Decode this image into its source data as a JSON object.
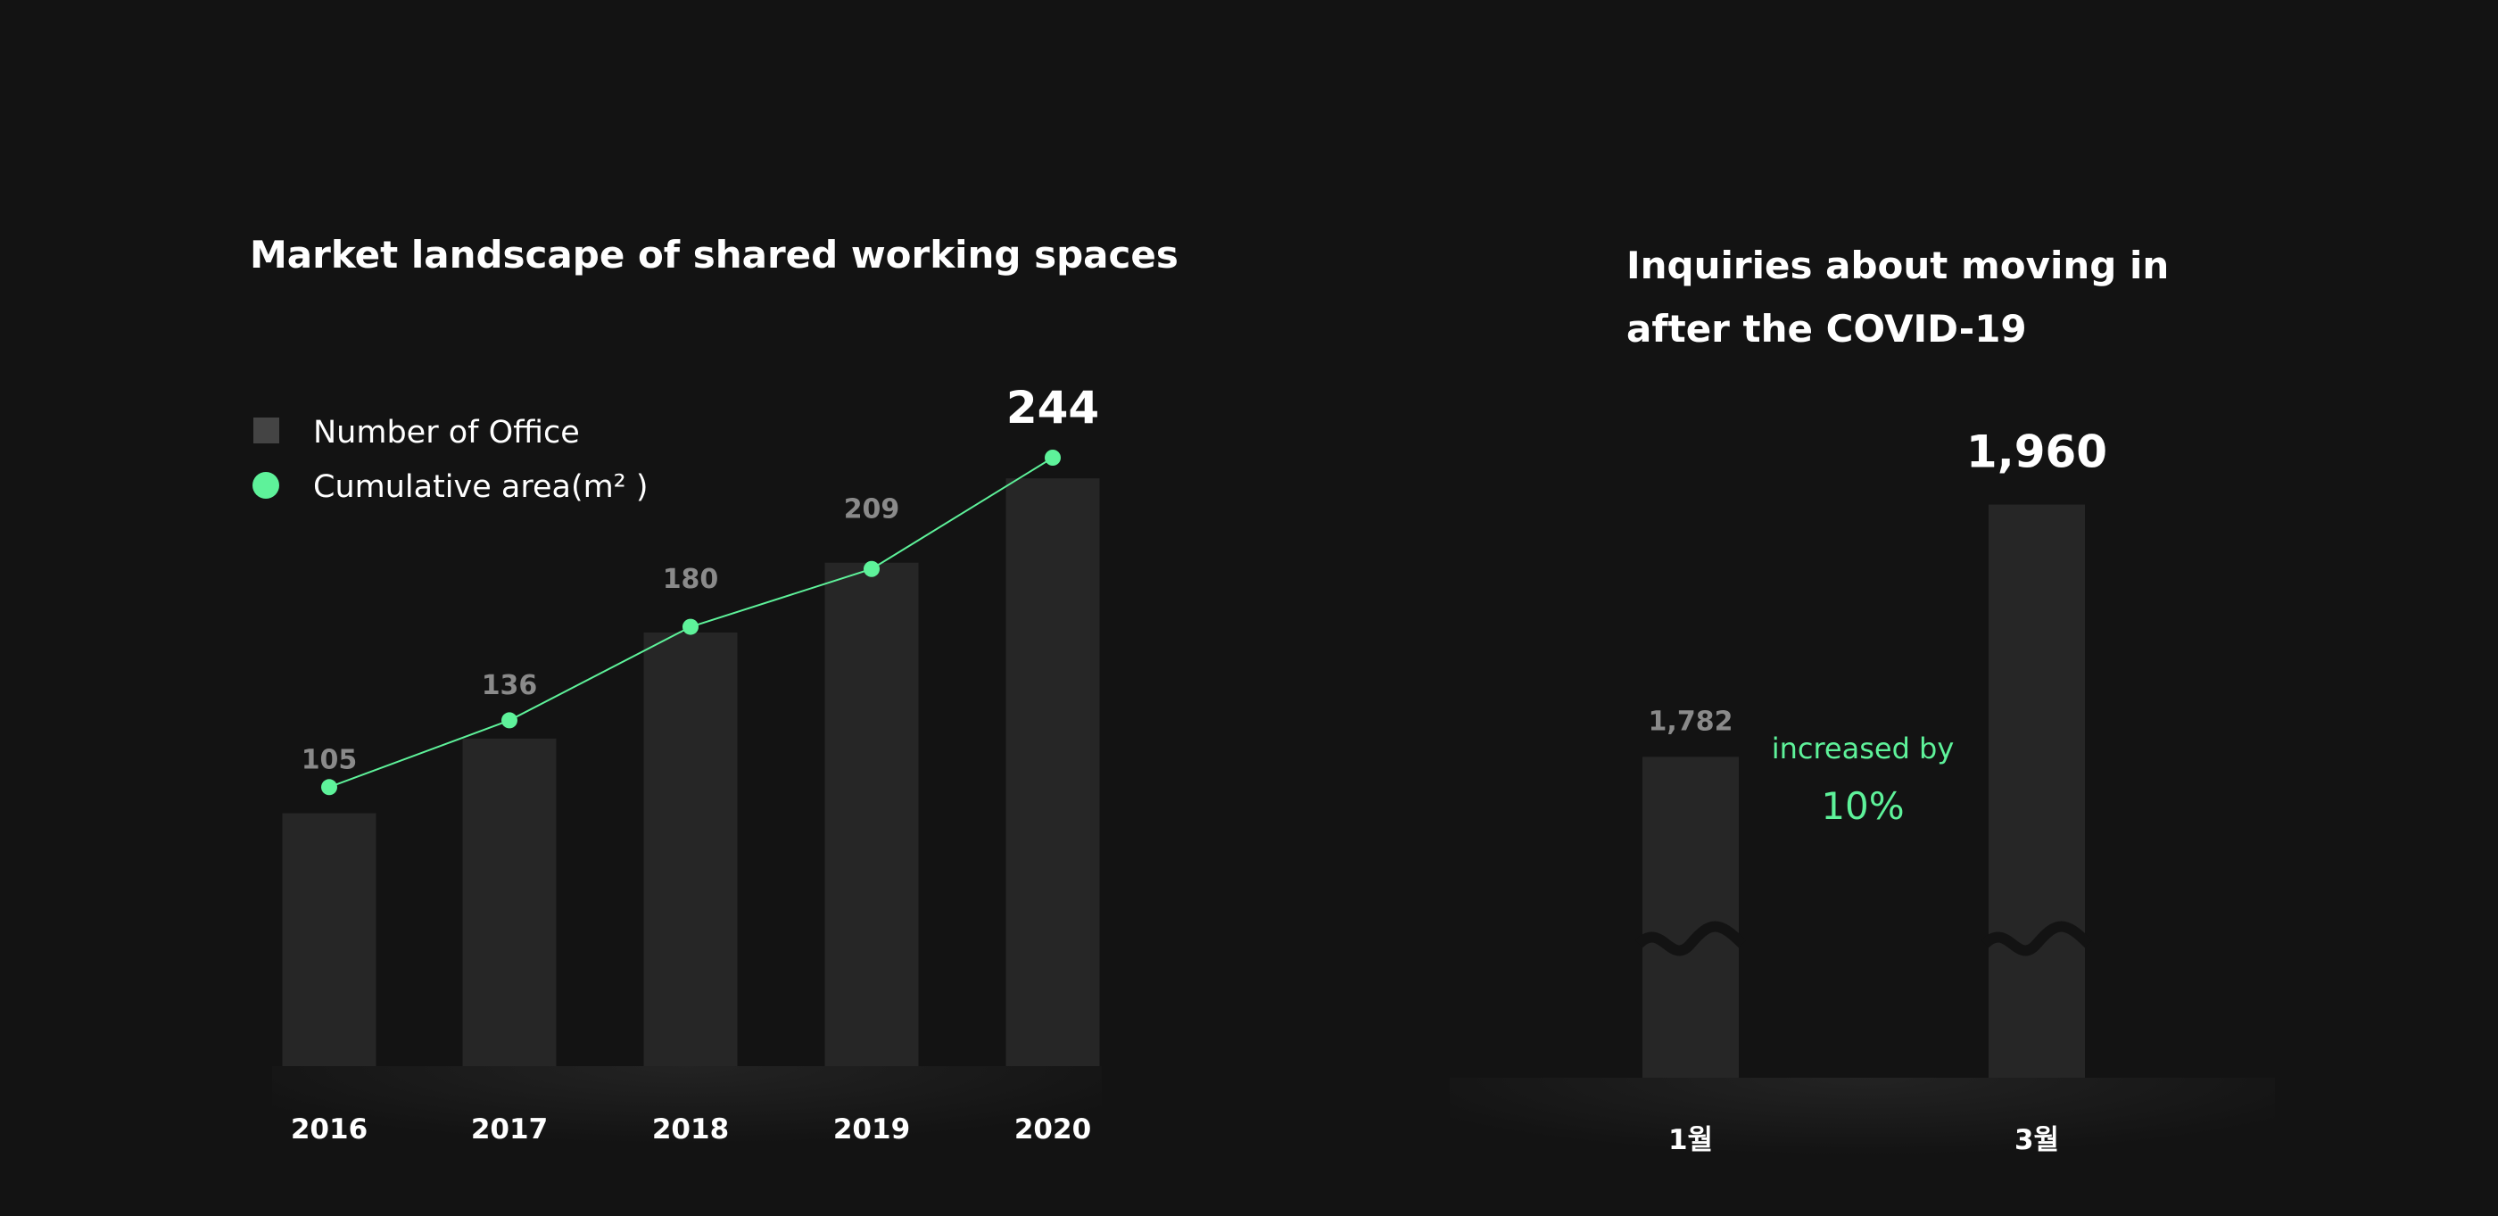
{
  "colors": {
    "background": "#131313",
    "bar": "#262626",
    "legend_square": "#444444",
    "accent": "#5ef29a",
    "label_muted": "#8a8a8a",
    "label_strong": "#ffffff",
    "axis_base": "#1c1c1c"
  },
  "chart_data": [
    {
      "type": "bar",
      "title": "Market landscape of shared working spaces",
      "categories": [
        "2016",
        "2017",
        "2018",
        "2019",
        "2020"
      ],
      "series": [
        {
          "name": "Number of Office",
          "type": "bar",
          "values": [
            105,
            136,
            180,
            209,
            244
          ],
          "value_labels": [
            "105",
            "136",
            "180",
            "209",
            "244"
          ]
        },
        {
          "name": "Cumulative area(m² )",
          "type": "line",
          "marker": "circle",
          "values": [
            null,
            null,
            null,
            null,
            null
          ]
        }
      ],
      "highlighted_category": "2020",
      "legend": {
        "position": "top-left",
        "items": [
          {
            "label": "Number of Office",
            "symbol": "square"
          },
          {
            "label": "Cumulative area(m² )",
            "symbol": "circle"
          }
        ]
      },
      "ylim": [
        0,
        260
      ],
      "grid": false,
      "line_profile": [
        0.26,
        0.41,
        0.62,
        0.75,
        1.0
      ]
    },
    {
      "type": "bar",
      "title": "Inquiries about moving in after the COVID-19",
      "categories": [
        "1월",
        "3월"
      ],
      "values": [
        1782,
        1960
      ],
      "value_labels": [
        "1,782",
        "1,960"
      ],
      "highlighted_category": "3월",
      "axis_break": true,
      "ylim": [
        1650,
        2000
      ],
      "grid": false,
      "annotation": {
        "line1": "increased by",
        "line2": "10%"
      }
    }
  ]
}
